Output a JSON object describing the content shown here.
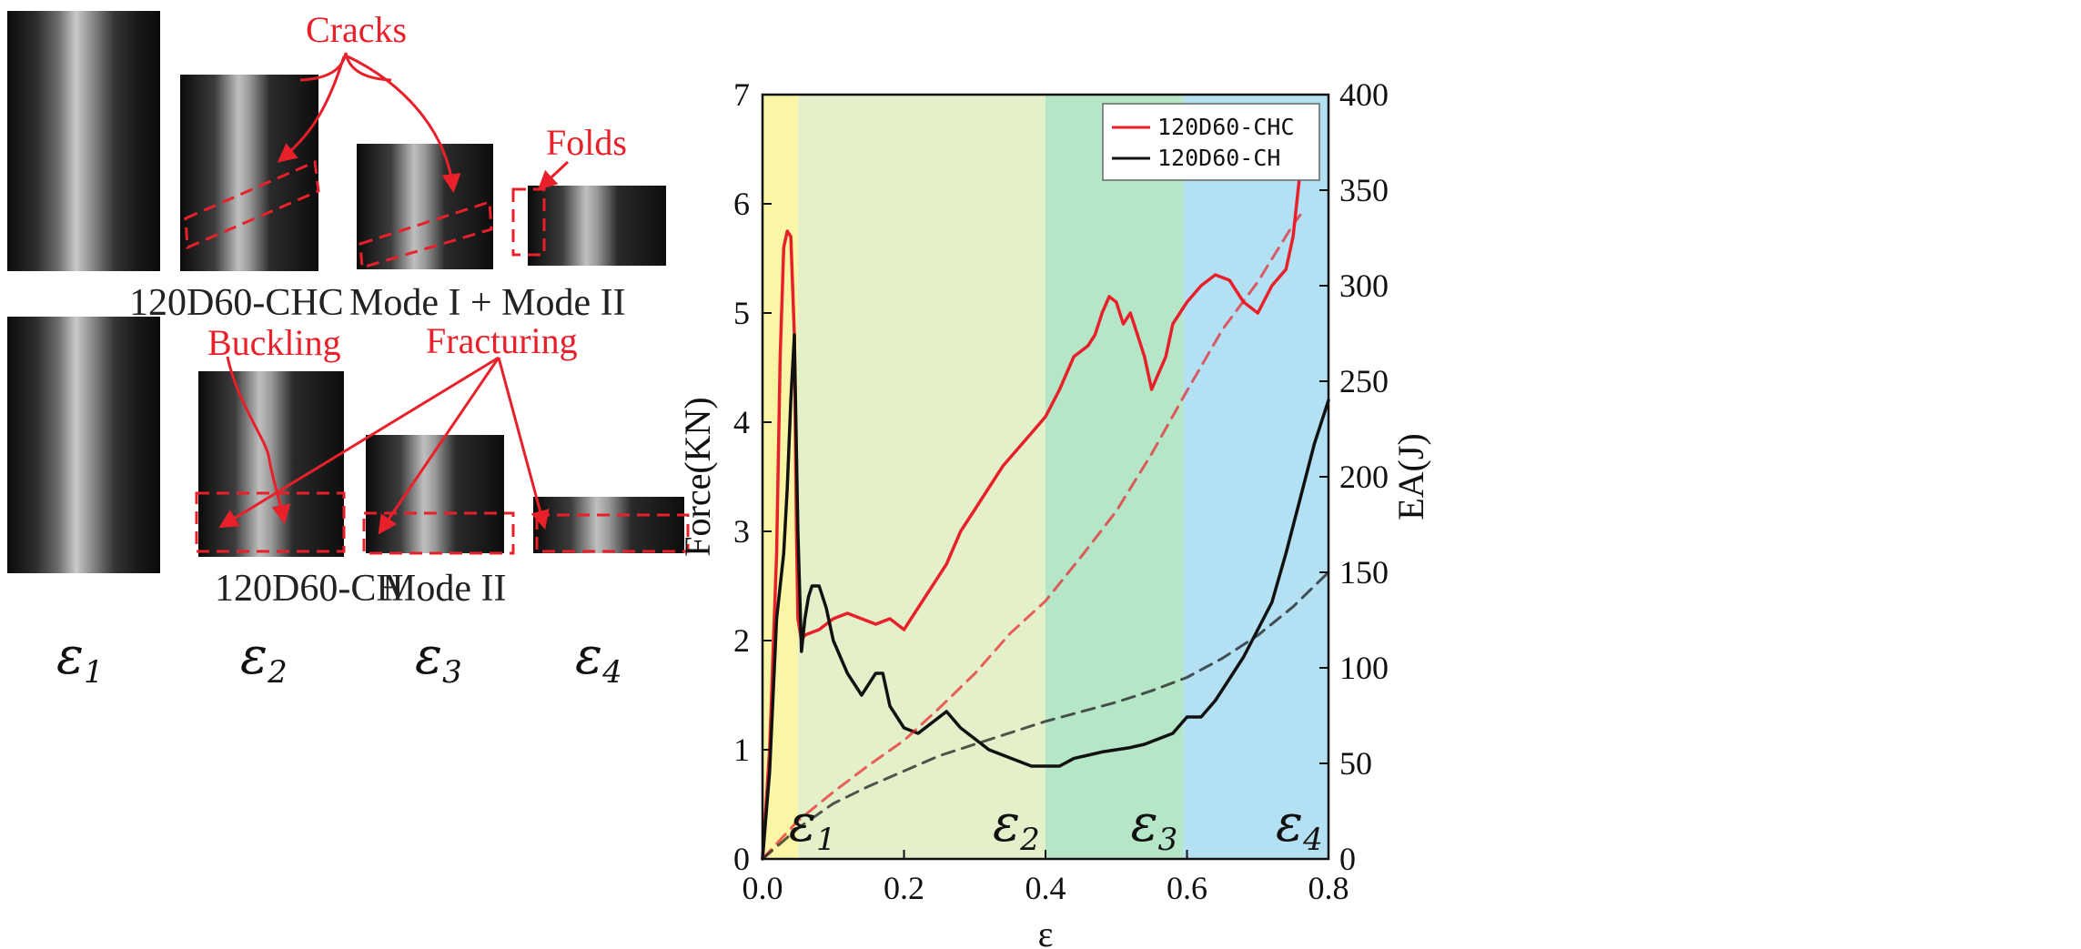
{
  "left_panel": {
    "annotations": {
      "cracks": "Cracks",
      "folds": "Folds",
      "buckling": "Buckling",
      "fracturing": "Fracturing"
    },
    "captions": {
      "chc": "120D60-CHC",
      "mode_mixed": "Mode I + Mode II",
      "ch": "120D60-CH",
      "mode2": "Mode II"
    },
    "stage_labels": [
      {
        "symbol": "ε",
        "sub": "1"
      },
      {
        "symbol": "ε",
        "sub": "2"
      },
      {
        "symbol": "ε",
        "sub": "3"
      },
      {
        "symbol": "ε",
        "sub": "4"
      }
    ]
  },
  "colors": {
    "chc": "#e8202a",
    "ch": "#111111",
    "band1": "#fbf6a6",
    "band2": "#e3f0c9",
    "band3": "#b6e6c8",
    "band4": "#b3e0f3",
    "annotation": "#e8202a"
  },
  "chart_data": {
    "type": "line",
    "title": "",
    "xlabel": "ε",
    "ylabel": "Force(KN)",
    "ylabel_right": "EA(J)",
    "xlim": [
      0,
      0.8
    ],
    "ylim": [
      0,
      7
    ],
    "ylim_right": [
      0,
      400
    ],
    "x_ticks": [
      "0.0",
      "0.2",
      "0.4",
      "0.6",
      "0.8"
    ],
    "y_ticks": [
      "0",
      "1",
      "2",
      "3",
      "4",
      "5",
      "6",
      "7"
    ],
    "y_ticks_right": [
      "0",
      "50",
      "100",
      "150",
      "200",
      "250",
      "300",
      "350",
      "400"
    ],
    "legend": {
      "placement": "top-right",
      "entries": [
        "120D60-CHC",
        "120D60-CH"
      ]
    },
    "stage_bands": [
      {
        "label": "ε",
        "sub": "1",
        "x0": 0.0,
        "x1": 0.05
      },
      {
        "label": "ε",
        "sub": "2",
        "x0": 0.05,
        "x1": 0.4
      },
      {
        "label": "ε",
        "sub": "3",
        "x0": 0.4,
        "x1": 0.595
      },
      {
        "label": "ε",
        "sub": "4",
        "x0": 0.595,
        "x1": 0.8
      }
    ],
    "series": [
      {
        "name": "120D60-CHC",
        "axis": "left",
        "style": "solid",
        "x": [
          0.0,
          0.01,
          0.02,
          0.025,
          0.03,
          0.035,
          0.04,
          0.045,
          0.048,
          0.05,
          0.055,
          0.06,
          0.08,
          0.1,
          0.12,
          0.14,
          0.16,
          0.18,
          0.2,
          0.22,
          0.24,
          0.26,
          0.28,
          0.3,
          0.32,
          0.34,
          0.36,
          0.38,
          0.4,
          0.42,
          0.44,
          0.46,
          0.47,
          0.48,
          0.49,
          0.5,
          0.51,
          0.52,
          0.53,
          0.54,
          0.55,
          0.56,
          0.57,
          0.58,
          0.6,
          0.62,
          0.64,
          0.66,
          0.67,
          0.68,
          0.7,
          0.72,
          0.74,
          0.75,
          0.76
        ],
        "y": [
          0.0,
          1.0,
          2.8,
          4.6,
          5.6,
          5.75,
          5.7,
          4.8,
          3.0,
          2.2,
          2.0,
          2.05,
          2.1,
          2.2,
          2.25,
          2.2,
          2.15,
          2.2,
          2.1,
          2.3,
          2.5,
          2.7,
          3.0,
          3.2,
          3.4,
          3.6,
          3.75,
          3.9,
          4.05,
          4.3,
          4.6,
          4.7,
          4.8,
          5.0,
          5.15,
          5.1,
          4.9,
          5.0,
          4.8,
          4.6,
          4.3,
          4.45,
          4.6,
          4.9,
          5.1,
          5.25,
          5.35,
          5.3,
          5.2,
          5.1,
          5.0,
          5.25,
          5.4,
          5.7,
          6.3
        ]
      },
      {
        "name": "120D60-CH",
        "axis": "left",
        "style": "solid",
        "x": [
          0.0,
          0.01,
          0.02,
          0.03,
          0.035,
          0.04,
          0.045,
          0.05,
          0.055,
          0.06,
          0.065,
          0.07,
          0.08,
          0.09,
          0.1,
          0.12,
          0.14,
          0.16,
          0.17,
          0.18,
          0.2,
          0.22,
          0.24,
          0.26,
          0.28,
          0.3,
          0.32,
          0.34,
          0.36,
          0.38,
          0.4,
          0.42,
          0.44,
          0.46,
          0.48,
          0.5,
          0.52,
          0.54,
          0.56,
          0.58,
          0.6,
          0.62,
          0.64,
          0.66,
          0.68,
          0.7,
          0.72,
          0.74,
          0.76,
          0.78,
          0.8
        ],
        "y": [
          0.0,
          0.8,
          2.2,
          2.8,
          3.4,
          4.2,
          4.8,
          3.0,
          1.9,
          2.2,
          2.4,
          2.5,
          2.5,
          2.3,
          2.0,
          1.7,
          1.5,
          1.7,
          1.7,
          1.4,
          1.2,
          1.15,
          1.25,
          1.35,
          1.2,
          1.1,
          1.0,
          0.95,
          0.9,
          0.85,
          0.85,
          0.85,
          0.92,
          0.95,
          0.98,
          1.0,
          1.02,
          1.05,
          1.1,
          1.15,
          1.3,
          1.3,
          1.45,
          1.65,
          1.85,
          2.1,
          2.35,
          2.8,
          3.3,
          3.8,
          4.2
        ]
      },
      {
        "name": "120D60-CHC",
        "axis": "right",
        "style": "dashed",
        "x": [
          0.0,
          0.05,
          0.1,
          0.15,
          0.2,
          0.25,
          0.3,
          0.35,
          0.4,
          0.45,
          0.5,
          0.55,
          0.6,
          0.65,
          0.7,
          0.75,
          0.76
        ],
        "y": [
          0,
          20,
          35,
          49,
          62,
          79,
          97,
          118,
          135,
          158,
          182,
          212,
          245,
          277,
          302,
          332,
          337
        ]
      },
      {
        "name": "120D60-CH",
        "axis": "right",
        "style": "dashed",
        "x": [
          0.0,
          0.05,
          0.1,
          0.15,
          0.2,
          0.25,
          0.3,
          0.35,
          0.4,
          0.45,
          0.5,
          0.55,
          0.6,
          0.65,
          0.7,
          0.75,
          0.8
        ],
        "y": [
          0,
          16,
          29,
          38,
          46,
          54,
          60,
          66,
          72,
          77,
          82,
          88,
          95,
          105,
          117,
          132,
          150
        ]
      }
    ]
  }
}
